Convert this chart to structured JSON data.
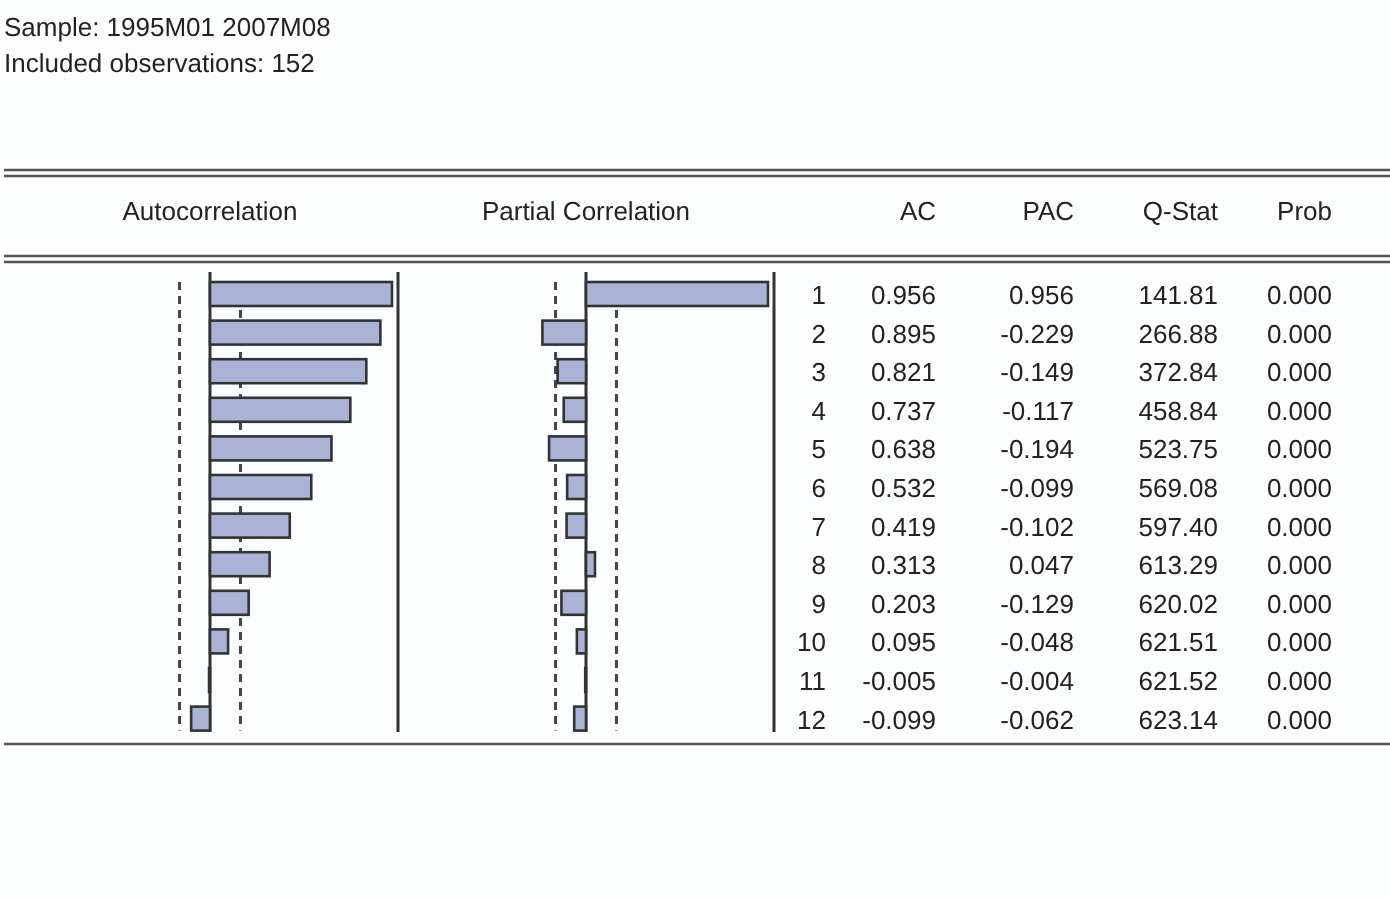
{
  "chart_data": [
    {
      "type": "bar",
      "orientation": "horizontal",
      "title": "Autocorrelation",
      "categories": [
        "1",
        "2",
        "3",
        "4",
        "5",
        "6",
        "7",
        "8",
        "9",
        "10",
        "11",
        "12"
      ],
      "series": [
        {
          "color": "#aab3d6",
          "values": [
            0.956,
            0.895,
            0.821,
            0.737,
            0.638,
            0.532,
            0.419,
            0.313,
            0.203,
            0.095,
            -0.005,
            -0.099
          ]
        }
      ],
      "data_labels": true,
      "ref_lines": [
        {
          "axis": "x",
          "value": -0.16,
          "line_style": "dashed",
          "color": "#444444"
        },
        {
          "axis": "x",
          "value": 0.16,
          "line_style": "dashed",
          "color": "#444444"
        }
      ],
      "annotations": [
        "AC"
      ]
    },
    {
      "type": "bar",
      "orientation": "horizontal",
      "title": "Partial Correlation",
      "categories": [
        null,
        null,
        null,
        null,
        null,
        null,
        null,
        null,
        null,
        null,
        null,
        null
      ],
      "series": [
        {
          "color": "#aab3d6",
          "values": [
            0.956,
            -0.229,
            -0.149,
            -0.117,
            -0.194,
            -0.099,
            -0.102,
            0.047,
            -0.129,
            -0.048,
            -0.004,
            -0.062
          ]
        }
      ],
      "data_labels": true,
      "ref_lines": [
        {
          "axis": "x",
          "value": -0.16,
          "line_style": "dashed",
          "color": "#444444"
        },
        {
          "axis": "x",
          "value": 0.16,
          "line_style": "dashed",
          "color": "#444444"
        }
      ],
      "annotations": [
        "PAC"
      ]
    },
    {
      "type": "other",
      "title": "Sample: 1995M01 2007M08",
      "subtitle": "Included observations: 152",
      "annotations": [
        "Q-Stat",
        "141.81",
        "266.88",
        "372.84",
        "458.84",
        "523.75",
        "569.08",
        "597.40",
        "613.29",
        "620.02",
        "621.51",
        "621.52",
        "623.14",
        "Prob",
        "0.000",
        "0.000",
        "0.000",
        "0.000",
        "0.000",
        "0.000",
        "0.000",
        "0.000",
        "0.000",
        "0.000",
        "0.000",
        "0.000"
      ]
    }
  ]
}
